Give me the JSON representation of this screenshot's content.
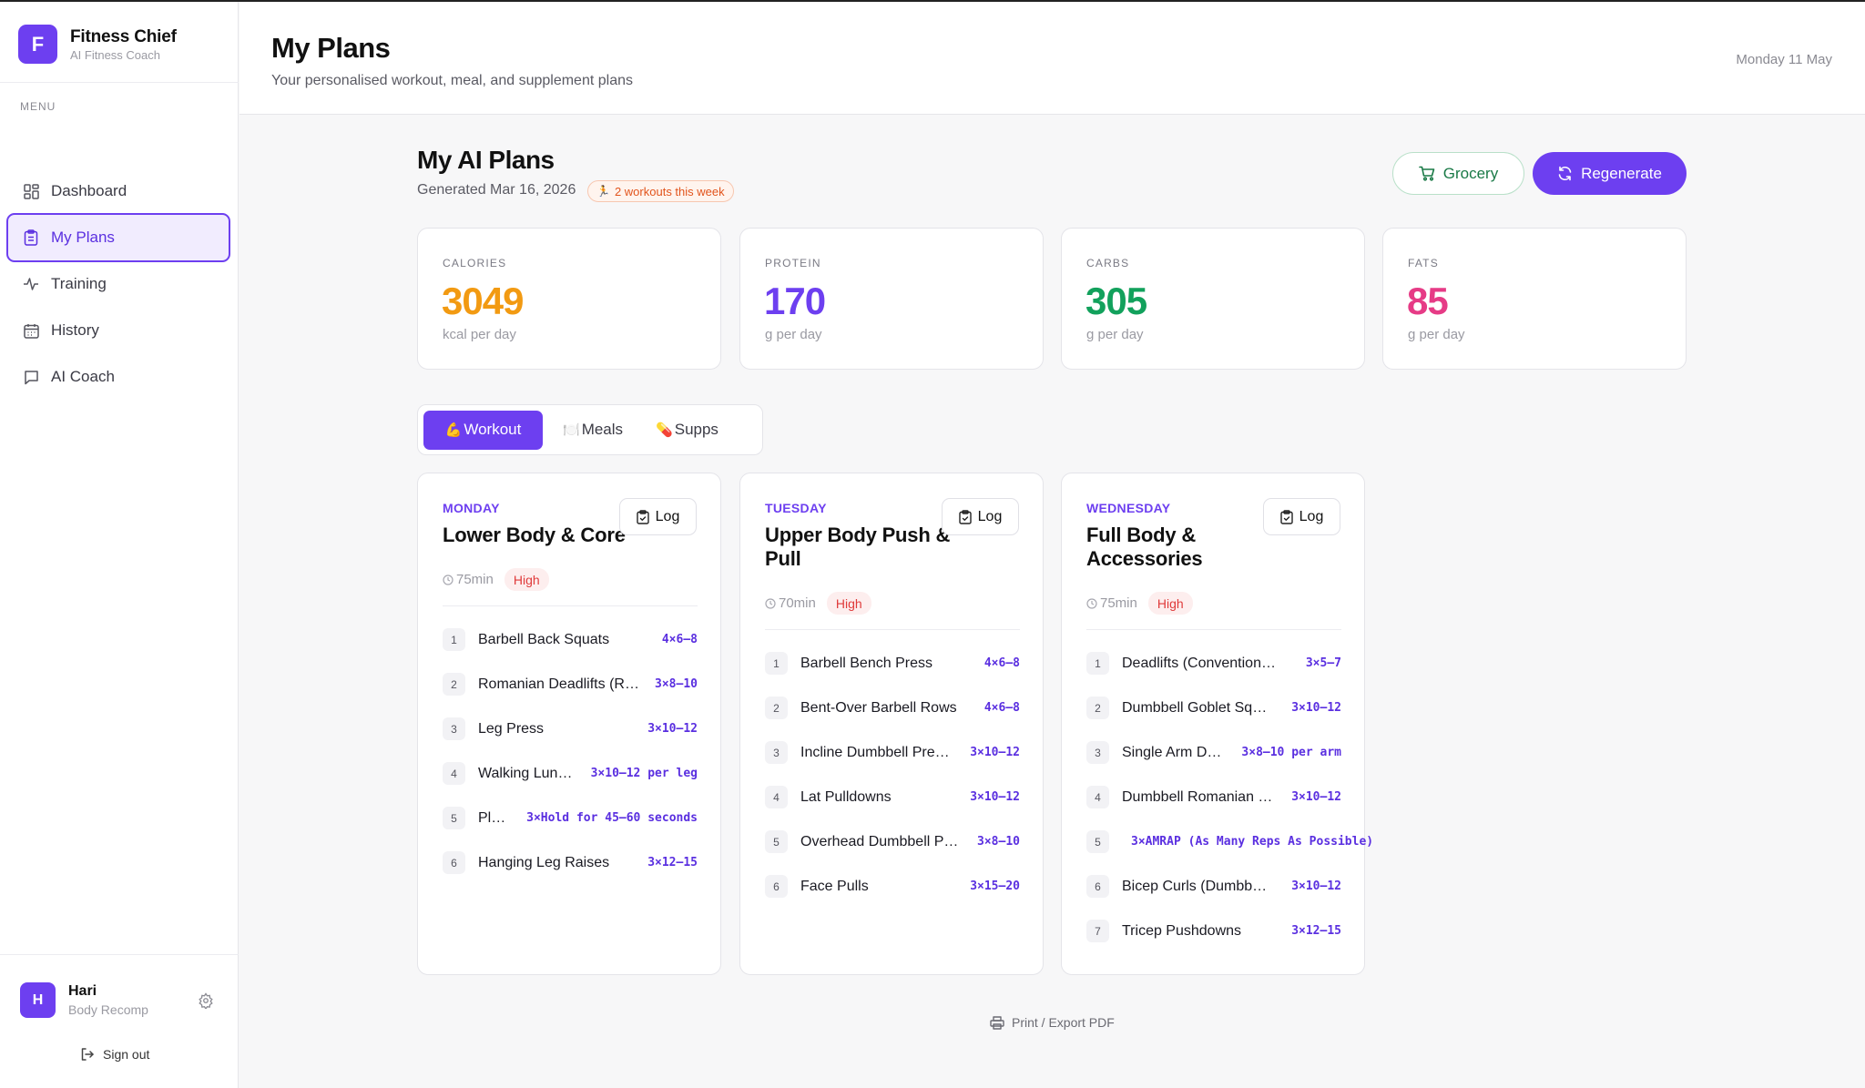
{
  "brand": {
    "initial": "F",
    "name": "Fitness Chief",
    "subtitle": "AI Fitness Coach"
  },
  "sidebar": {
    "menu_label": "MENU",
    "items": [
      {
        "label": "Dashboard",
        "icon": "grid-icon"
      },
      {
        "label": "My Plans",
        "icon": "clipboard-icon",
        "active": true
      },
      {
        "label": "Training",
        "icon": "activity-icon"
      },
      {
        "label": "History",
        "icon": "calendar-icon"
      },
      {
        "label": "AI Coach",
        "icon": "chat-icon"
      }
    ],
    "user": {
      "initial": "H",
      "name": "Hari",
      "goal": "Body Recomp"
    },
    "signout_label": "Sign out"
  },
  "header": {
    "title": "My Plans",
    "subtitle": "Your personalised workout, meal, and supplement plans",
    "date": "Monday 11 May"
  },
  "plans": {
    "title": "My AI Plans",
    "generated": "Generated Mar 16, 2026",
    "week_badge": "2 workouts this week",
    "grocery_label": "Grocery",
    "regenerate_label": "Regenerate"
  },
  "stats": [
    {
      "label": "CALORIES",
      "value": "3049",
      "unit": "kcal per day",
      "color": "#f29a12"
    },
    {
      "label": "PROTEIN",
      "value": "170",
      "unit": "g per day",
      "color": "#6d3ff0"
    },
    {
      "label": "CARBS",
      "value": "305",
      "unit": "g per day",
      "color": "#12a15c"
    },
    {
      "label": "FATS",
      "value": "85",
      "unit": "g per day",
      "color": "#e63b86"
    }
  ],
  "tabs": [
    {
      "label": "Workout",
      "icon": "💪",
      "active": true
    },
    {
      "label": "Meals",
      "icon": "🍽️"
    },
    {
      "label": "Supps",
      "icon": "💊"
    }
  ],
  "workouts": [
    {
      "day": "MONDAY",
      "title": "Lower Body & Core",
      "duration": "75min",
      "intensity": "High",
      "log_label": "Log",
      "exercises": [
        {
          "num": "1",
          "name": "Barbell Back Squats",
          "sets": "4×6–8"
        },
        {
          "num": "2",
          "name": "Romanian Deadlifts (R…",
          "sets": "3×8–10"
        },
        {
          "num": "3",
          "name": "Leg Press",
          "sets": "3×10–12"
        },
        {
          "num": "4",
          "name": "Walking Lun…",
          "sets": "3×10–12 per leg"
        },
        {
          "num": "5",
          "name": "Pl…",
          "sets": "3×Hold for 45–60 seconds"
        },
        {
          "num": "6",
          "name": "Hanging Leg Raises",
          "sets": "3×12–15"
        }
      ]
    },
    {
      "day": "TUESDAY",
      "title": "Upper Body Push & Pull",
      "duration": "70min",
      "intensity": "High",
      "log_label": "Log",
      "exercises": [
        {
          "num": "1",
          "name": "Barbell Bench Press",
          "sets": "4×6–8"
        },
        {
          "num": "2",
          "name": "Bent-Over Barbell Rows",
          "sets": "4×6–8"
        },
        {
          "num": "3",
          "name": "Incline Dumbbell Pre…",
          "sets": "3×10–12"
        },
        {
          "num": "4",
          "name": "Lat Pulldowns",
          "sets": "3×10–12"
        },
        {
          "num": "5",
          "name": "Overhead Dumbbell P…",
          "sets": "3×8–10"
        },
        {
          "num": "6",
          "name": "Face Pulls",
          "sets": "3×15–20"
        }
      ]
    },
    {
      "day": "WEDNESDAY",
      "title": "Full Body & Accessories",
      "duration": "75min",
      "intensity": "High",
      "log_label": "Log",
      "exercises": [
        {
          "num": "1",
          "name": "Deadlifts (Convention…",
          "sets": "3×5–7"
        },
        {
          "num": "2",
          "name": "Dumbbell Goblet Sq…",
          "sets": "3×10–12"
        },
        {
          "num": "3",
          "name": "Single Arm D…",
          "sets": "3×8–10 per arm"
        },
        {
          "num": "4",
          "name": "Dumbbell Romanian …",
          "sets": "3×10–12"
        },
        {
          "num": "5",
          "name": "",
          "sets": "3×AMRAP (As Many Reps As Possible)"
        },
        {
          "num": "6",
          "name": "Bicep Curls (Dumbb…",
          "sets": "3×10–12"
        },
        {
          "num": "7",
          "name": "Tricep Pushdowns",
          "sets": "3×12–15"
        }
      ]
    }
  ],
  "footer": {
    "print_label": "Print / Export PDF"
  }
}
